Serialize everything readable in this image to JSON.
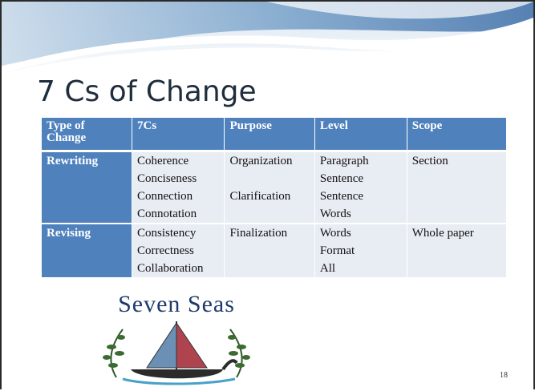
{
  "title": "7 Cs of Change",
  "table": {
    "header": [
      "Type of Change",
      "7Cs",
      "Purpose",
      "Level",
      "Scope"
    ],
    "groups": [
      {
        "type": "Rewriting",
        "scope": "Section",
        "subgroups": [
          {
            "purpose": "Organization",
            "items": [
              {
                "c": "Coherence",
                "level": "Paragraph"
              },
              {
                "c": "Conciseness",
                "level": "Sentence"
              }
            ]
          },
          {
            "purpose": "Clarification",
            "items": [
              {
                "c": "Connection",
                "level": "Sentence"
              },
              {
                "c": "Connotation",
                "level": "Words"
              }
            ]
          }
        ]
      },
      {
        "type": "Revising",
        "scope": "Whole paper",
        "subgroups": [
          {
            "purpose": "Finalization",
            "items": [
              {
                "c": "Consistency",
                "level": "Words"
              },
              {
                "c": "Correctness",
                "level": "Format"
              },
              {
                "c": "Collaboration",
                "level": "All"
              }
            ]
          }
        ]
      }
    ]
  },
  "logo": {
    "text": "Seven Seas"
  },
  "page_number": "18"
}
